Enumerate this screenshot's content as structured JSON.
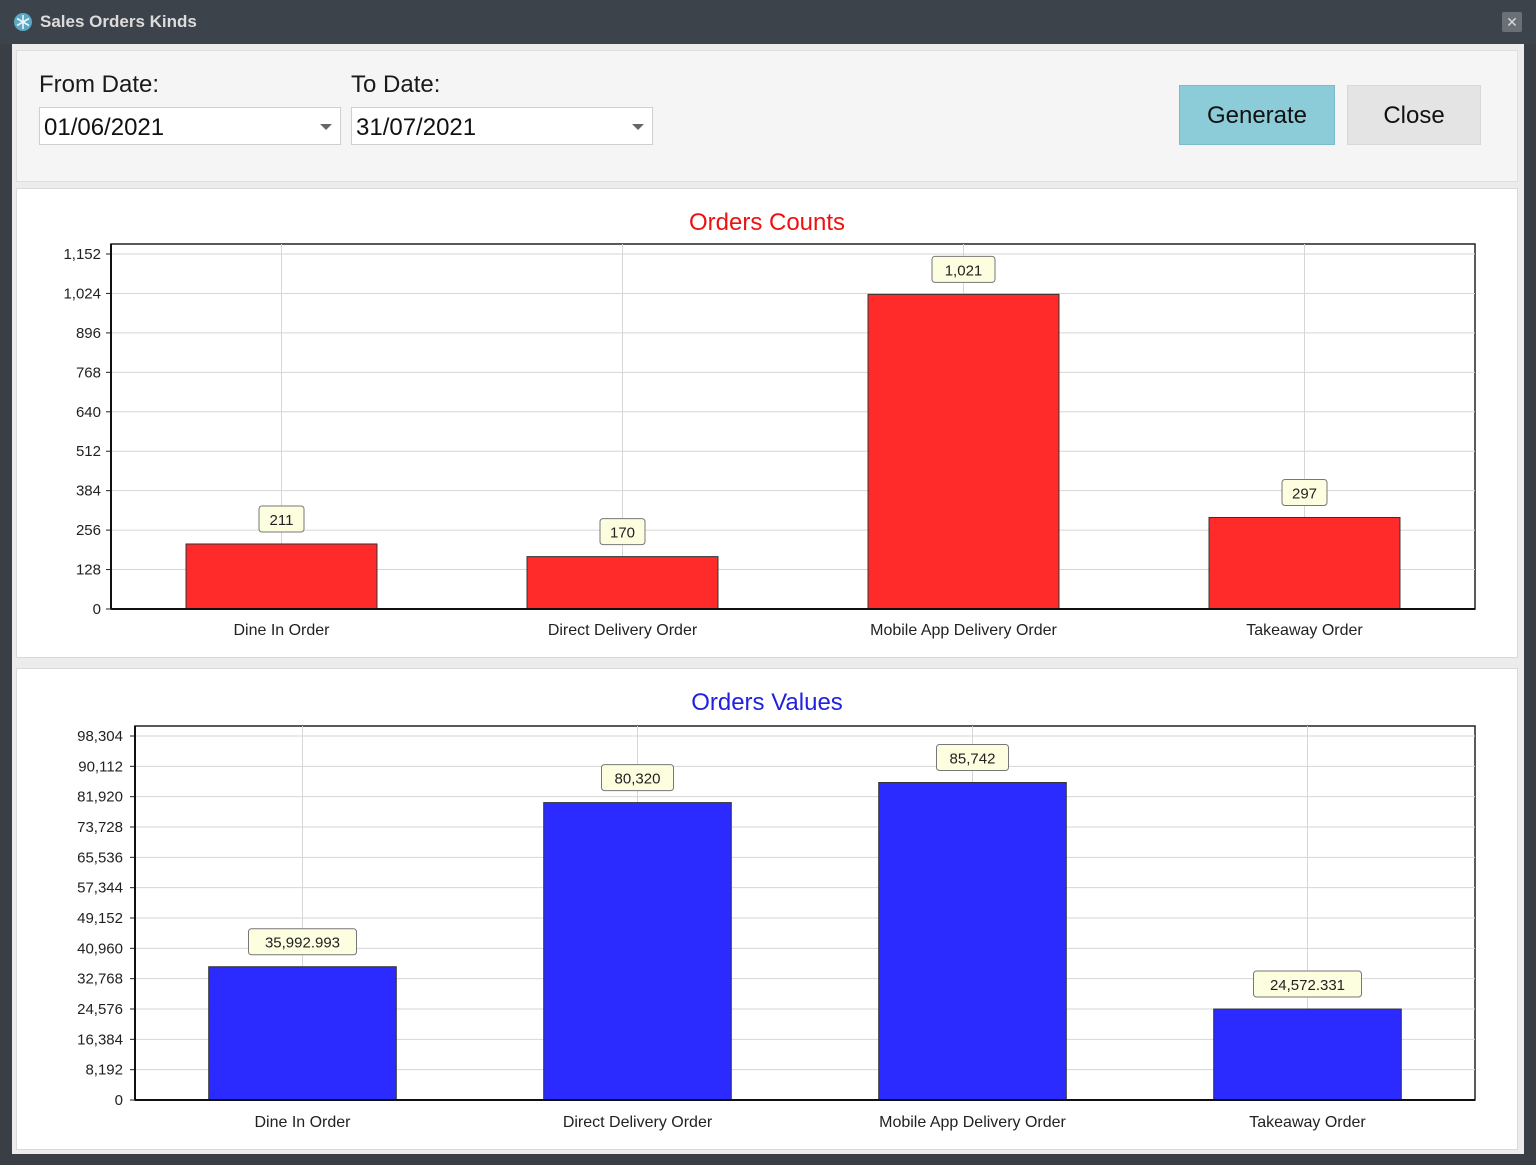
{
  "window": {
    "title": "Sales Orders Kinds",
    "close_glyph": "✕"
  },
  "filters": {
    "from_label": "From Date:",
    "from_value": "01/06/2021",
    "to_label": "To Date:",
    "to_value": "31/07/2021"
  },
  "buttons": {
    "generate": "Generate",
    "close": "Close"
  },
  "chart_data": [
    {
      "type": "bar",
      "title": "Orders Counts",
      "title_color": "#ee1111",
      "bar_color": "#ff2a2a",
      "categories": [
        "Dine In Order",
        "Direct Delivery Order",
        "Mobile App Delivery Order",
        "Takeaway Order"
      ],
      "values": [
        211,
        170,
        1021,
        297
      ],
      "data_labels": [
        "211",
        "170",
        "1,021",
        "297"
      ],
      "yticks": [
        "0",
        "128",
        "256",
        "384",
        "512",
        "640",
        "768",
        "896",
        "1,024",
        "1,152"
      ],
      "ylim": [
        0,
        1152
      ],
      "grid": true
    },
    {
      "type": "bar",
      "title": "Orders Values",
      "title_color": "#2222dd",
      "bar_color": "#2b2bff",
      "categories": [
        "Dine In Order",
        "Direct Delivery Order",
        "Mobile App Delivery Order",
        "Takeaway Order"
      ],
      "values": [
        35992.993,
        80320,
        85742,
        24572.331
      ],
      "data_labels": [
        "35,992.993",
        "80,320",
        "85,742",
        "24,572.331"
      ],
      "yticks": [
        "0",
        "8,192",
        "16,384",
        "24,576",
        "32,768",
        "40,960",
        "49,152",
        "57,344",
        "65,536",
        "73,728",
        "81,920",
        "90,112",
        "98,304"
      ],
      "ylim": [
        0,
        98304
      ],
      "grid": true
    }
  ]
}
